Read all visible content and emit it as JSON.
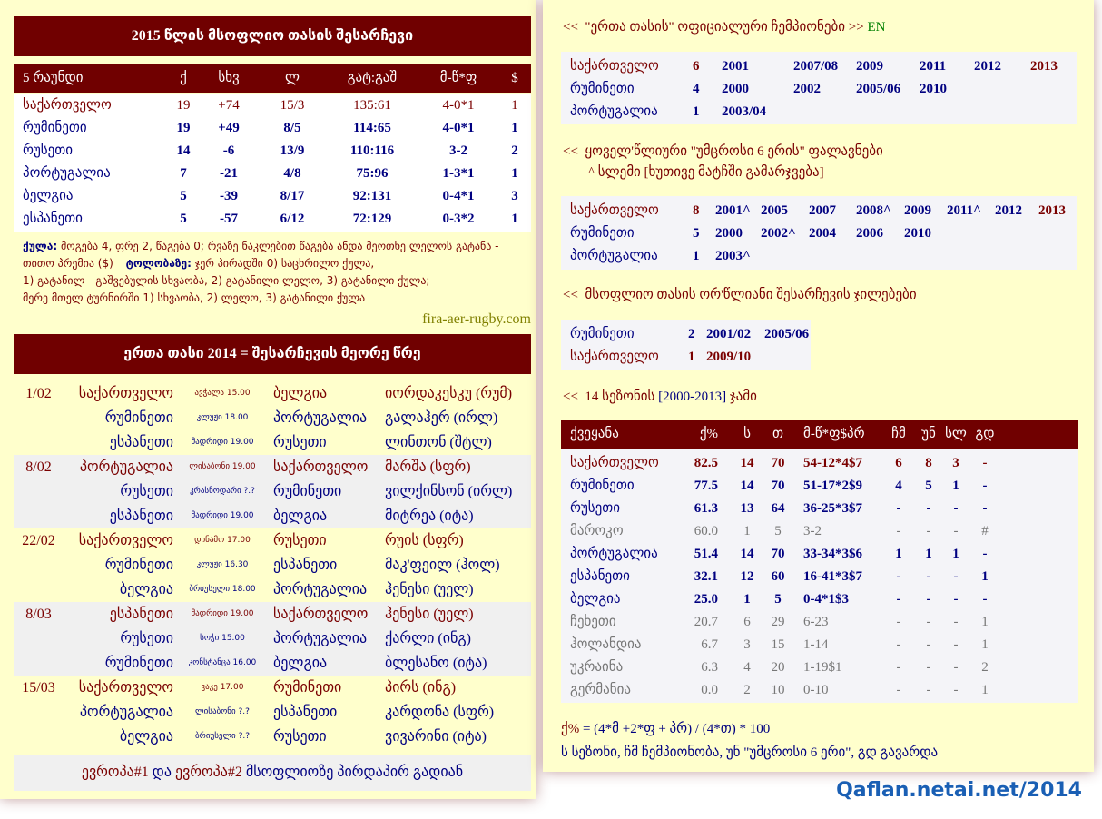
{
  "highlight_team": "საქართველო",
  "colors": {
    "panel": "#ffffcc",
    "bar": "#700000",
    "highlight": "#7a0000",
    "text": "#000080",
    "minor": "#777777",
    "link": "#808000",
    "en": "#008000",
    "watermark": "#1a5fb4"
  },
  "left": {
    "title": "2015 წლის მსოფლიო თასის შესარჩევი",
    "standings": {
      "header": [
        "5 რაუნდი",
        "ქ",
        "სხვ",
        "ლ",
        "გატ:გაშ",
        "მ-წ*ფ",
        "$"
      ],
      "rows": [
        [
          "საქართველო",
          "19",
          "+74",
          "15/3",
          "135:61",
          "4-0*1",
          "1"
        ],
        [
          "რუმინეთი",
          "19",
          "+49",
          "8/5",
          "114:65",
          "4-0*1",
          "1"
        ],
        [
          "რუსეთი",
          "14",
          "-6",
          "13/9",
          "110:116",
          "3-2",
          "2"
        ],
        [
          "პორტუგალია",
          "7",
          "-21",
          "4/8",
          "75:96",
          "1-3*1",
          "1"
        ],
        [
          "ბელგია",
          "5",
          "-39",
          "8/17",
          "92:131",
          "0-4*1",
          "3"
        ],
        [
          "ესპანეთი",
          "5",
          "-57",
          "6/12",
          "72:129",
          "0-3*2",
          "1"
        ]
      ]
    },
    "notes": {
      "points_label": "ქულა:",
      "points_text": "მოგება 4, ფრე 2, წაგება 0; რვაზე ნაკლებით წაგება ანდა მეოთხე ლელოს გატანა - თითო პრემია ($)",
      "tie_label": "ტოლობაზე:",
      "tie_text": "ჯერ პირადში 0) საცხრილო ქულა,",
      "line2": "1) გატანილ - გაშვებულის სხვაობა, 2) გატანილი ლელო, 3) გატანილი ქულა;",
      "line3": "მერე მთელ ტურნირში 1) სხვაობა, 2) ლელო, 3) გატანილი ქულა"
    },
    "source_link": "fira-aer-rugby.com",
    "fixtures_title": "ერთა თასი 2014 = შესარჩევის მეორე წრე",
    "rounds": [
      {
        "date": "1/02",
        "matches": [
          {
            "home": "საქართველო",
            "venue": "ავჭალა 15.00",
            "away": "ბელგია",
            "referee": "იორდაკესკუ (რუმ)"
          },
          {
            "home": "რუმინეთი",
            "venue": "კლუჟი 18.00",
            "away": "პორტუგალია",
            "referee": "გალაჰერ (ირლ)"
          },
          {
            "home": "ესპანეთი",
            "venue": "მადრიდი 19.00",
            "away": "რუსეთი",
            "referee": "ლინთონ (შტლ)"
          }
        ]
      },
      {
        "date": "8/02",
        "matches": [
          {
            "home": "პორტუგალია",
            "venue": "ლისაბონი 19.00",
            "away": "საქართველო",
            "referee": "მარშა (სფრ)"
          },
          {
            "home": "რუსეთი",
            "venue": "კრასნოდარი ?.?",
            "away": "რუმინეთი",
            "referee": "ვილქინსონ (ირლ)"
          },
          {
            "home": "ესპანეთი",
            "venue": "მადრიდი 19.00",
            "away": "ბელგია",
            "referee": "მიტრეა (იტა)"
          }
        ]
      },
      {
        "date": "22/02",
        "matches": [
          {
            "home": "საქართველო",
            "venue": "დინამო 17.00",
            "away": "რუსეთი",
            "referee": "რუის (სფრ)"
          },
          {
            "home": "რუმინეთი",
            "venue": "კლუჟი 16.30",
            "away": "ესპანეთი",
            "referee": "მაკ'ფეილ (ჰოლ)"
          },
          {
            "home": "ბელგია",
            "venue": "ბრიუსელი 18.00",
            "away": "პორტუგალია",
            "referee": "ჰენესი (უელ)"
          }
        ]
      },
      {
        "date": "8/03",
        "matches": [
          {
            "home": "ესპანეთი",
            "venue": "მადრიდი 19.00",
            "away": "საქართველო",
            "referee": "ჰენესი (უელ)"
          },
          {
            "home": "რუსეთი",
            "venue": "სოჭი 15.00",
            "away": "პორტუგალია",
            "referee": "ქარლი (ინგ)"
          },
          {
            "home": "რუმინეთი",
            "venue": "კონსტანცა 16.00",
            "away": "ბელგია",
            "referee": "ბლესანო (იტა)"
          }
        ]
      },
      {
        "date": "15/03",
        "matches": [
          {
            "home": "საქართველო",
            "venue": "ვაკე 17.00",
            "away": "რუმინეთი",
            "referee": "პირს (ინგ)"
          },
          {
            "home": "პორტუგალია",
            "venue": "ლისაბონი ?.?",
            "away": "ესპანეთი",
            "referee": "კარდონა (სფრ)"
          },
          {
            "home": "ბელგია",
            "venue": "ბრიუსელი ?.?",
            "away": "რუსეთი",
            "referee": "ვივარინი (იტა)"
          }
        ]
      }
    ],
    "footer": {
      "e1": "ევროპა#1",
      "and": " და ",
      "e2": "ევროპა#2",
      "rest": " მსოფლიოზე პირდაპირ გადიან"
    }
  },
  "right": {
    "champions": {
      "prefix": "<<",
      "title": "\"ერთა თასის\" ოფიციალური ჩემპიონები >>",
      "lang": "EN",
      "rows": [
        {
          "team": "საქართველო",
          "count": "6",
          "years": [
            "2001",
            "2007/08",
            "2009",
            "2011",
            "2012",
            "2013"
          ],
          "red_years": [
            "2013"
          ]
        },
        {
          "team": "რუმინეთი",
          "count": "4",
          "years": [
            "2000",
            "2002",
            "2005/06",
            "2010"
          ],
          "red_years": []
        },
        {
          "team": "პორტუგალია",
          "count": "1",
          "years": [
            "2003/04"
          ],
          "red_years": []
        }
      ]
    },
    "junior": {
      "prefix": "<<",
      "title": "ყოველ'წლიური \"უმცროსი 6 ერის\" ფალავნები",
      "note": "^ სლემი [ხუთივე მატჩში გამარჯვება]",
      "rows": [
        {
          "team": "საქართველო",
          "count": "8",
          "years": [
            "2001^",
            "2005",
            "2007",
            "2008^",
            "2009",
            "2011^",
            "2012",
            "2013"
          ],
          "red_years": [
            "2013"
          ]
        },
        {
          "team": "რუმინეთი",
          "count": "5",
          "years": [
            "2000",
            "2002^",
            "2004",
            "2006",
            "2010"
          ],
          "red_years": []
        },
        {
          "team": "პორტუგალია",
          "count": "1",
          "years": [
            "2003^"
          ],
          "red_years": []
        }
      ]
    },
    "qualifiers": {
      "prefix": "<<",
      "title": "მსოფლიო თასის ორ'წლიანი შესარჩევის ჯილებები",
      "rows": [
        {
          "team": "რუმინეთი",
          "count": "2",
          "years": [
            "2001/02",
            "2005/06"
          ],
          "red_years": []
        },
        {
          "team": "საქართველო",
          "count": "1",
          "years": [
            "2009/10"
          ],
          "red_years": [
            "2009/10"
          ]
        }
      ]
    },
    "summary": {
      "prefix": "<<",
      "title_a": "14 სეზონის ",
      "title_b": "[2000-2013]",
      "title_c": " ჯამი",
      "header": [
        "ქვეყანა",
        "ქ%",
        "ს",
        "თ",
        "მ-წ*ფ$პრ",
        "ჩმ",
        "უნ",
        "სლ",
        "გდ"
      ],
      "rows": [
        {
          "tier": "highlight",
          "cells": [
            "საქართველო",
            "82.5",
            "14",
            "70",
            "54-12*4$7",
            "6",
            "8",
            "3",
            "-"
          ]
        },
        {
          "tier": "member",
          "cells": [
            "რუმინეთი",
            "77.5",
            "14",
            "70",
            "51-17*2$9",
            "4",
            "5",
            "1",
            "-"
          ]
        },
        {
          "tier": "member",
          "cells": [
            "რუსეთი",
            "61.3",
            "13",
            "64",
            "36-25*3$7",
            "-",
            "-",
            "-",
            "-"
          ]
        },
        {
          "tier": "other",
          "cells": [
            "მაროკო",
            "60.0",
            "1",
            "5",
            "3-2",
            "-",
            "-",
            "-",
            "#"
          ]
        },
        {
          "tier": "member",
          "cells": [
            "პორტუგალია",
            "51.4",
            "14",
            "70",
            "33-34*3$6",
            "1",
            "1",
            "1",
            "-"
          ]
        },
        {
          "tier": "member",
          "cells": [
            "ესპანეთი",
            "32.1",
            "12",
            "60",
            "16-41*3$7",
            "-",
            "-",
            "-",
            "1"
          ]
        },
        {
          "tier": "member",
          "cells": [
            "ბელგია",
            "25.0",
            "1",
            "5",
            "0-4*1$3",
            "-",
            "-",
            "-",
            "-"
          ]
        },
        {
          "tier": "other",
          "cells": [
            "ჩეხეთი",
            "20.7",
            "6",
            "29",
            "6-23",
            "-",
            "-",
            "-",
            "1"
          ]
        },
        {
          "tier": "other",
          "cells": [
            "ჰოლანდია",
            "6.7",
            "3",
            "15",
            "1-14",
            "-",
            "-",
            "-",
            "1"
          ]
        },
        {
          "tier": "other",
          "cells": [
            "უკრაინა",
            "6.3",
            "4",
            "20",
            "1-19$1",
            "-",
            "-",
            "-",
            "2"
          ]
        },
        {
          "tier": "other",
          "cells": [
            "გერმანია",
            "0.0",
            "2",
            "10",
            "0-10",
            "-",
            "-",
            "-",
            "1"
          ]
        }
      ]
    },
    "formula_label": "ქ%",
    "formula": " = (4*მ +2*ფ + პრ) / (4*თ) * 100",
    "legend": "ს სეზონი, ჩმ ჩემპიონობა, უნ \"უმცროსი 6 ერი\", გდ გავარდა"
  },
  "watermark": "Qaflan.netai.net/2014"
}
